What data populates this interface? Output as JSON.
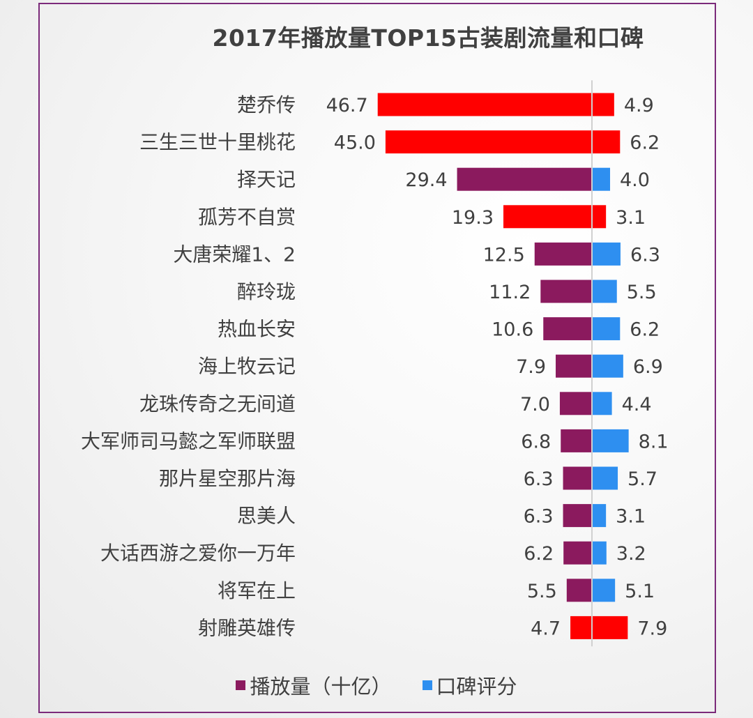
{
  "chart_data": {
    "type": "bar",
    "title": "2017年播放量TOP15古装剧流量和口碑",
    "categories": [
      "楚乔传",
      "三生三世十里桃花",
      "择天记",
      "孤芳不自赏",
      "大唐荣耀1、2",
      "醉玲珑",
      "热血长安",
      "海上牧云记",
      "龙珠传奇之无间道",
      "大军师司马懿之军师联盟",
      "那片星空那片海",
      "思美人",
      "大话西游之爱你一万年",
      "将军在上",
      "射雕英雄传"
    ],
    "series": [
      {
        "name": "播放量（十亿）",
        "color": "#8b1a5e",
        "direction": "left",
        "values": [
          46.7,
          45.0,
          29.4,
          19.3,
          12.5,
          11.2,
          10.6,
          7.9,
          7.0,
          6.8,
          6.3,
          6.3,
          6.2,
          5.5,
          4.7
        ],
        "labels": [
          "46.7",
          "45.0",
          "29.4",
          "19.3",
          "12.5",
          "11.2",
          "10.6",
          "7.9",
          "7.0",
          "6.8",
          "6.3",
          "6.3",
          "6.2",
          "5.5",
          "4.7"
        ]
      },
      {
        "name": "口碑评分",
        "color": "#2e8ff0",
        "direction": "right",
        "values": [
          4.9,
          6.2,
          4.0,
          3.1,
          6.3,
          5.5,
          6.2,
          6.9,
          4.4,
          8.1,
          5.7,
          3.1,
          3.2,
          5.1,
          7.9
        ],
        "labels": [
          "4.9",
          "6.2",
          "4.0",
          "3.1",
          "6.3",
          "5.5",
          "6.2",
          "6.9",
          "4.4",
          "8.1",
          "5.7",
          "3.1",
          "3.2",
          "5.1",
          "7.9"
        ]
      }
    ],
    "highlighted_categories": [
      "楚乔传",
      "三生三世十里桃花",
      "孤芳不自赏",
      "射雕英雄传"
    ],
    "highlight_color": "#ff0000",
    "legend_position": "bottom",
    "grid": false
  },
  "legend": {
    "views_label": "播放量（十亿）",
    "rating_label": "口碑评分"
  }
}
